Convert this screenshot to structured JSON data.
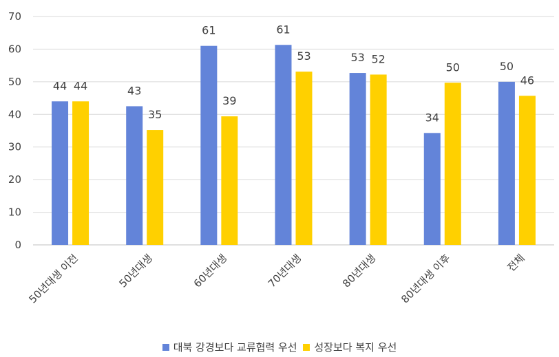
{
  "chart_data": {
    "type": "bar",
    "categories": [
      "50년대생 이전",
      "50년대생",
      "60년대생",
      "70년대생",
      "80년대생",
      "80년대생 이후",
      "전체"
    ],
    "series": [
      {
        "name": "대북 강경보다 교류협력 우선",
        "values": [
          44,
          42.5,
          61,
          61.3,
          52.7,
          34.3,
          50
        ],
        "labels": [
          "44",
          "43",
          "61",
          "61",
          "53",
          "34",
          "50"
        ],
        "color": "#6384D9"
      },
      {
        "name": "성장보다 복지 우선",
        "values": [
          44,
          35.2,
          39.4,
          53.1,
          52.2,
          49.7,
          45.7
        ],
        "labels": [
          "44",
          "35",
          "39",
          "53",
          "52",
          "50",
          "46"
        ],
        "color": "#FFD000"
      }
    ],
    "ylim": [
      0,
      70
    ],
    "yticks": [
      "0",
      "10",
      "20",
      "30",
      "40",
      "50",
      "60",
      "70"
    ],
    "grid": true,
    "legend": "bottom"
  }
}
